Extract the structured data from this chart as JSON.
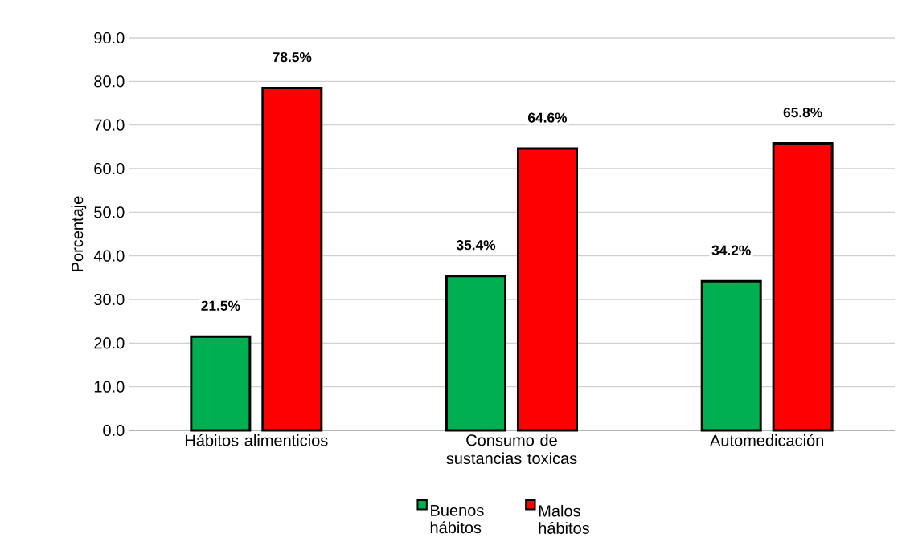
{
  "chart_data": {
    "type": "bar",
    "ylabel": "Porcentaje",
    "categories": [
      "Hábitos alimenticios",
      "Consumo de sustancias toxicas",
      "Automedicación"
    ],
    "series": [
      {
        "name": "Buenos hábitos",
        "color": "#00b050",
        "values": [
          21.5,
          35.4,
          34.2
        ],
        "value_labels": [
          "21.5%",
          "35.4%",
          "34.2%"
        ]
      },
      {
        "name": "Malos hábitos",
        "color": "#ff0000",
        "values": [
          78.5,
          64.6,
          65.8
        ],
        "value_labels": [
          "78.5%",
          "64.6%",
          "65.8%"
        ]
      }
    ],
    "ylim": [
      0,
      90
    ],
    "yticks": [
      {
        "value": 0,
        "label": "0.0"
      },
      {
        "value": 10,
        "label": "10.0"
      },
      {
        "value": 20,
        "label": "20.0"
      },
      {
        "value": 30,
        "label": "30.0"
      },
      {
        "value": 40,
        "label": "40.0"
      },
      {
        "value": 50,
        "label": "50.0"
      },
      {
        "value": 60,
        "label": "60.0"
      },
      {
        "value": 70,
        "label": "70.0"
      },
      {
        "value": 80,
        "label": "80.0"
      },
      {
        "value": 90,
        "label": "90.0"
      }
    ],
    "grid": "y",
    "legend": "bottom"
  }
}
